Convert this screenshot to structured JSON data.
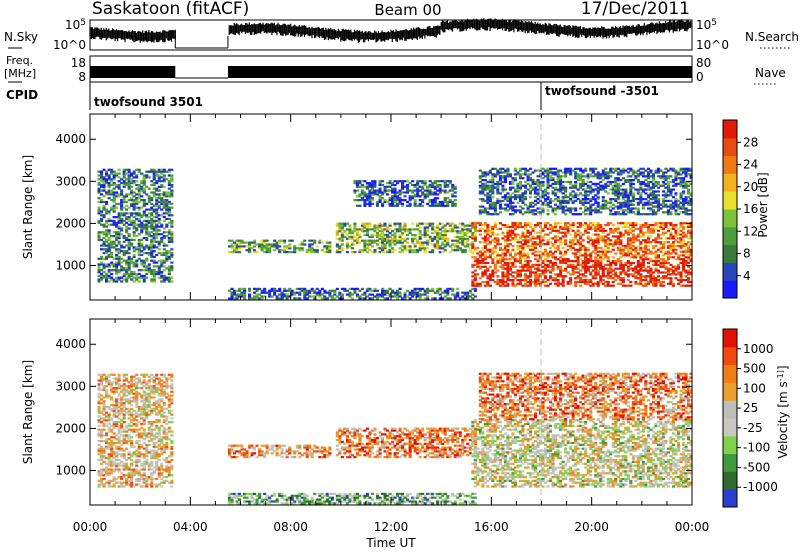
{
  "header": {
    "station": "Saskatoon (fitACF)",
    "beam": "Beam 00",
    "date": "17/Dec/2011"
  },
  "top_panels": {
    "nsky": {
      "label": "N.Sky",
      "ticks": [
        "10^5",
        "10^0"
      ]
    },
    "nsearch": {
      "label": "N.Search",
      "ticks": [
        "10^5",
        "10^0"
      ]
    },
    "freq": {
      "label_line1": "Freq.",
      "label_line2": "[MHz]",
      "ticks": [
        "18",
        "8"
      ]
    },
    "nave": {
      "label": "Nave",
      "ticks": [
        "80",
        "0"
      ]
    },
    "cpid": {
      "label": "CPID",
      "segments": [
        {
          "start_hour": 0,
          "end_hour": 18,
          "name": "twofsound 3501"
        },
        {
          "start_hour": 18,
          "end_hour": 24,
          "name": "twofsound -3501"
        }
      ]
    },
    "data_gap_hours": [
      3.4,
      5.5
    ]
  },
  "chart_data": [
    {
      "type": "heatmap",
      "parameter": "Power",
      "ylabel": "Slant Range [km]",
      "xlabel": "Time UT",
      "xlim": [
        0,
        24
      ],
      "ylim": [
        180,
        4600
      ],
      "yticks": [
        "1000",
        "2000",
        "3000",
        "4000"
      ],
      "xticks": [
        "00:00",
        "04:00",
        "08:00",
        "12:00",
        "16:00",
        "20:00",
        "00:00"
      ],
      "colorbar": {
        "label": "Power [dB]",
        "ticks": [
          "4",
          "8",
          "12",
          "16",
          "20",
          "24",
          "28"
        ],
        "colors": [
          "#1a1aff",
          "#2646b8",
          "#3a7a3a",
          "#4f9e3c",
          "#7cc23a",
          "#e8e02a",
          "#f5b022",
          "#f07a12",
          "#e84c10",
          "#e01a08"
        ]
      },
      "echo_regions": [
        {
          "t0": 0.3,
          "t1": 3.3,
          "r0": 600,
          "r1": 3300,
          "level": 0.25
        },
        {
          "t0": 5.5,
          "t1": 9.5,
          "r0": 1300,
          "r1": 1600,
          "level": 0.35
        },
        {
          "t0": 5.5,
          "t1": 15.3,
          "r0": 200,
          "r1": 450,
          "level": 0.2
        },
        {
          "t0": 9.8,
          "t1": 15.3,
          "r0": 1300,
          "r1": 2000,
          "level": 0.4
        },
        {
          "t0": 10.5,
          "t1": 14.5,
          "r0": 2400,
          "r1": 3000,
          "level": 0.2
        },
        {
          "t0": 15.2,
          "t1": 24,
          "r0": 500,
          "r1": 2000,
          "level": 0.8
        },
        {
          "t0": 15.5,
          "t1": 24,
          "r0": 2200,
          "r1": 3300,
          "level": 0.2
        }
      ]
    },
    {
      "type": "heatmap",
      "parameter": "Velocity",
      "ylabel": "Slant Range [km]",
      "xlabel": "Time UT",
      "xlim": [
        0,
        24
      ],
      "ylim": [
        180,
        4600
      ],
      "yticks": [
        "1000",
        "2000",
        "3000",
        "4000"
      ],
      "xticks": [
        "00:00",
        "04:00",
        "08:00",
        "12:00",
        "16:00",
        "20:00",
        "00:00"
      ],
      "colorbar": {
        "label": "Velocity [m s^-1]",
        "ticks": [
          "1000",
          "500",
          "100",
          "25",
          "-25",
          "-100",
          "-500",
          "-1000"
        ],
        "colors": [
          "#2a3fcc",
          "#2f6a2f",
          "#3f9a3a",
          "#7fd24a",
          "#c8c8c0",
          "#bcbcb8",
          "#e8a030",
          "#f07e18",
          "#f04a10",
          "#e01208"
        ]
      },
      "echo_regions": [
        {
          "t0": 0.3,
          "t1": 3.3,
          "r0": 600,
          "r1": 3300,
          "level": 0.6
        },
        {
          "t0": 5.5,
          "t1": 9.5,
          "r0": 1300,
          "r1": 1600,
          "level": 0.7
        },
        {
          "t0": 5.5,
          "t1": 15.3,
          "r0": 200,
          "r1": 450,
          "level": 0.3
        },
        {
          "t0": 9.8,
          "t1": 15.3,
          "r0": 1300,
          "r1": 2000,
          "level": 0.75
        },
        {
          "t0": 15.2,
          "t1": 24,
          "r0": 600,
          "r1": 2200,
          "level": 0.5
        },
        {
          "t0": 15.5,
          "t1": 24,
          "r0": 2200,
          "r1": 3300,
          "level": 0.75
        }
      ]
    }
  ]
}
